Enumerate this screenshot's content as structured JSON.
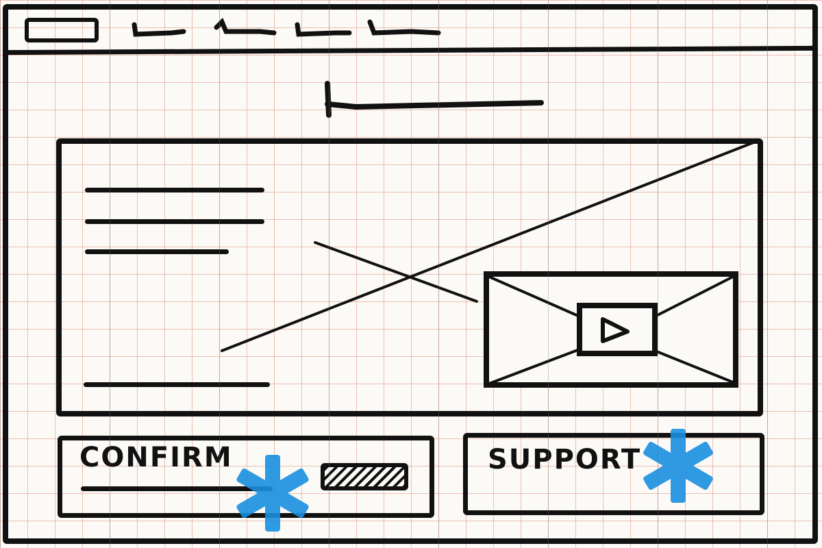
{
  "confirm_card": {
    "title": "CONFIRM"
  },
  "support_card": {
    "title": "SUPPORT"
  },
  "colors": {
    "ink": "#111111",
    "accent": "#1a8fe0",
    "grid": "#dc785a"
  },
  "icons": {
    "play": "play-icon",
    "star": "asterisk-icon",
    "image": "image-placeholder-icon",
    "video": "video-placeholder-icon"
  }
}
